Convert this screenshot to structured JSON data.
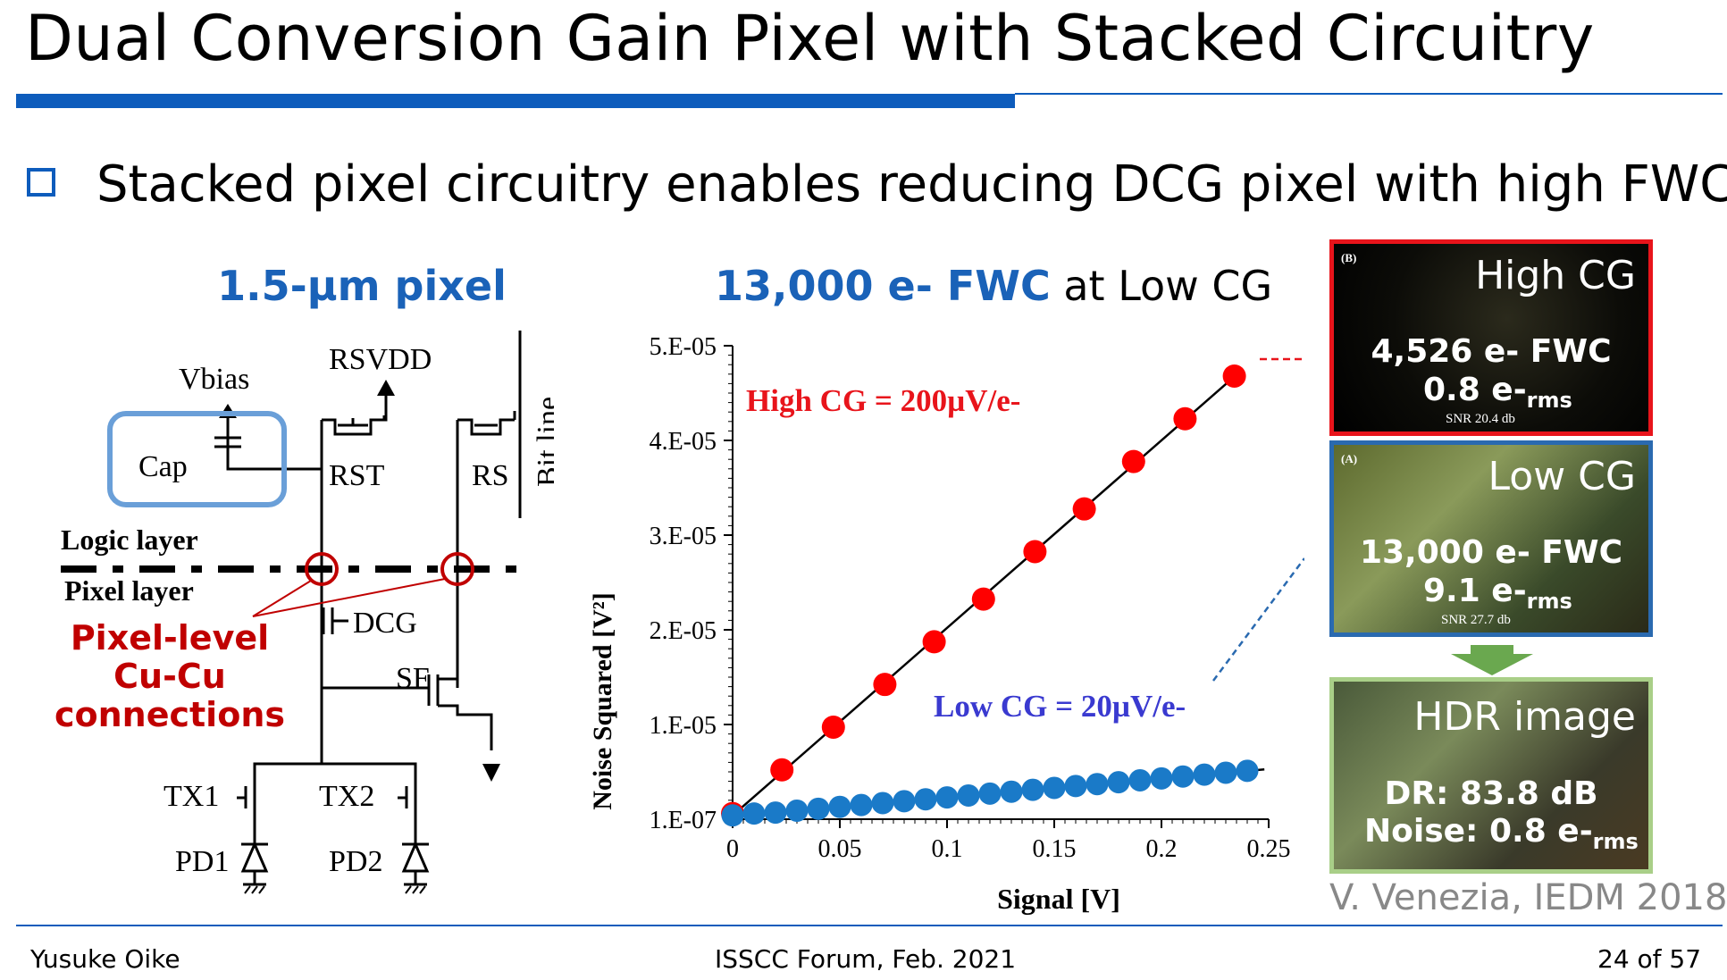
{
  "slide": {
    "title": "Dual Conversion Gain Pixel with Stacked Circuitry",
    "bullet": "Stacked pixel circuitry enables reducing DCG pixel with high FWC",
    "accent_color": "#0d5cbc"
  },
  "circuit": {
    "heading": "1.5-µm pixel",
    "labels": {
      "vbias": "Vbias",
      "rsvdd": "RSVDD",
      "cap": "Cap",
      "rst": "RST",
      "rs": "RS",
      "bitline": "Bit line",
      "logic_layer": "Logic layer",
      "pixel_layer": "Pixel layer",
      "dcg": "DCG",
      "sf": "SF",
      "tx1": "TX1",
      "tx2": "TX2",
      "pd1": "PD1",
      "pd2": "PD2"
    },
    "cucu_lines": [
      "Pixel-level",
      "Cu-Cu",
      "connections"
    ]
  },
  "chart_heading": {
    "bold_part": "13,000 e- FWC",
    "rest": " at Low CG"
  },
  "chart_data": {
    "type": "scatter",
    "title": "13,000 e- FWC at Low CG",
    "xlabel": "Signal [V]",
    "ylabel": "Noise Squared [V²]",
    "xlim": [
      0,
      0.25
    ],
    "ylim": [
      1e-07,
      5e-05
    ],
    "xticks": [
      "0",
      "0.05",
      "0.1",
      "0.15",
      "0.2",
      "0.25"
    ],
    "yticks": [
      "1.E-07",
      "1.E-05",
      "2.E-05",
      "3.E-05",
      "4.E-05",
      "5.E-05"
    ],
    "series": [
      {
        "name": "High CG = 200µV/e-",
        "color": "#ff0000",
        "x": [
          0,
          0.023,
          0.047,
          0.071,
          0.094,
          0.117,
          0.141,
          0.164,
          0.187,
          0.211,
          0.234
        ],
        "y": [
          7e-07,
          5.3e-06,
          9.8e-06,
          1.43e-05,
          1.88e-05,
          2.33e-05,
          2.83e-05,
          3.28e-05,
          3.78e-05,
          4.23e-05,
          4.68e-05
        ]
      },
      {
        "name": "Low CG = 20µV/e-",
        "color": "#1a7ac8",
        "x": [
          0,
          0.01,
          0.02,
          0.03,
          0.04,
          0.05,
          0.06,
          0.07,
          0.08,
          0.09,
          0.1,
          0.11,
          0.12,
          0.13,
          0.14,
          0.15,
          0.16,
          0.17,
          0.18,
          0.19,
          0.2,
          0.21,
          0.22,
          0.23,
          0.24
        ],
        "y": [
          5e-07,
          7e-07,
          8e-07,
          1e-06,
          1.2e-06,
          1.4e-06,
          1.6e-06,
          1.8e-06,
          2e-06,
          2.2e-06,
          2.4e-06,
          2.6e-06,
          2.8e-06,
          3e-06,
          3.2e-06,
          3.4e-06,
          3.6e-06,
          3.8e-06,
          4e-06,
          4.2e-06,
          4.4e-06,
          4.6e-06,
          4.8e-06,
          5e-06,
          5.2e-06
        ]
      }
    ],
    "annotations": {
      "high_cg": "High CG = 200µV/e-",
      "low_cg": "Low CG = 20µV/e-"
    }
  },
  "images": {
    "high_cg": {
      "tag": "(B)",
      "name": "High CG",
      "fwc": "4,526 e- FWC",
      "noise": "0.8 e-",
      "noise_sub": "rms",
      "snr": "SNR 20.4 db"
    },
    "low_cg": {
      "tag": "(A)",
      "name": "Low CG",
      "fwc": "13,000 e- FWC",
      "noise": "9.1 e-",
      "noise_sub": "rms",
      "snr": "SNR 27.7 db"
    },
    "hdr": {
      "name": "HDR image",
      "dr": "DR: 83.8 dB",
      "noise": "Noise: 0.8 e-",
      "noise_sub": "rms"
    }
  },
  "citation": "V. Venezia, IEDM 2018",
  "footer": {
    "author": "Yusuke Oike",
    "event": "ISSCC Forum, Feb. 2021",
    "page": "24 of 57"
  }
}
